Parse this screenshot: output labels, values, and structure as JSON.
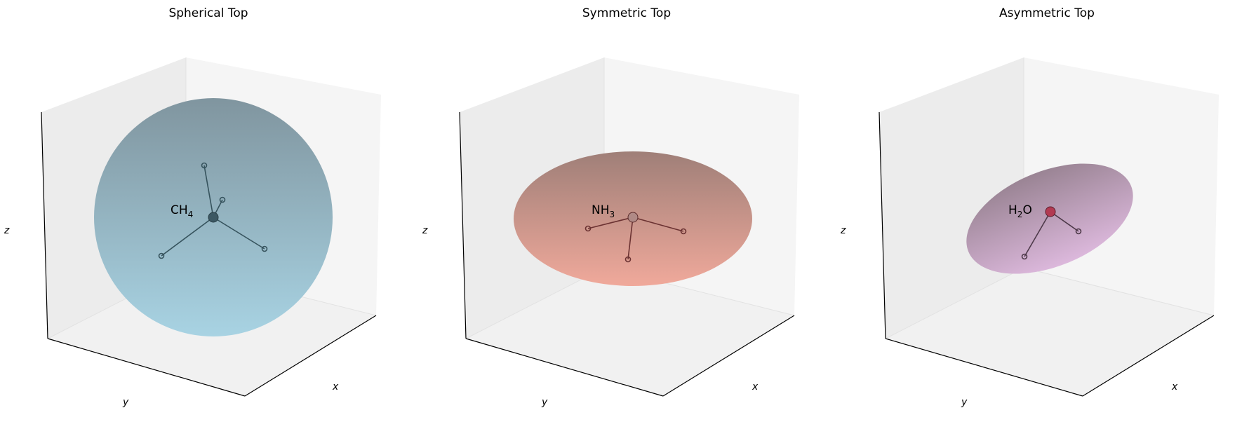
{
  "panels": [
    {
      "title": "Spherical Top",
      "molecule": {
        "main": "CH",
        "sub": "4"
      },
      "axes": {
        "x": "x",
        "y": "y",
        "z": "z"
      },
      "colors": {
        "top": "#80959f",
        "bottom": "#a8d3e3",
        "bond": "#36535d",
        "center": "#3c5863"
      }
    },
    {
      "title": "Symmetric Top",
      "molecule": {
        "main": "NH",
        "sub": "3"
      },
      "axes": {
        "x": "x",
        "y": "y",
        "z": "z"
      },
      "colors": {
        "top": "#9f7f78",
        "bottom": "#f0a99b",
        "bond": "#6b3232",
        "center": "#b08a86"
      }
    },
    {
      "title": "Asymmetric Top",
      "molecule": {
        "main": "H",
        "sub": "2",
        "post": "O"
      },
      "axes": {
        "x": "x",
        "y": "y",
        "z": "z"
      },
      "colors": {
        "top": "#9a8494",
        "bottom": "#dcb8dc",
        "bond": "#4e3a4a",
        "center": "#b23a52"
      }
    }
  ]
}
